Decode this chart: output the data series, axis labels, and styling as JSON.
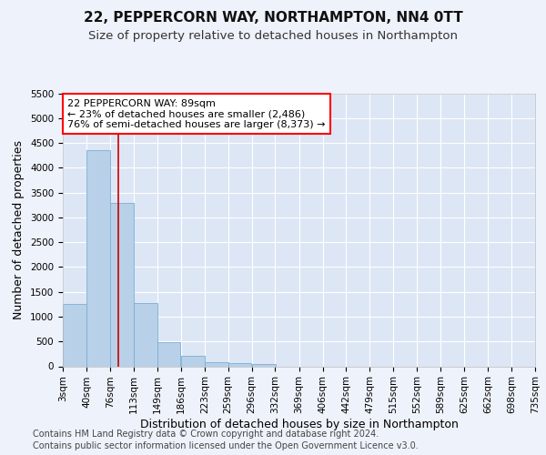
{
  "title1": "22, PEPPERCORN WAY, NORTHAMPTON, NN4 0TT",
  "title2": "Size of property relative to detached houses in Northampton",
  "xlabel": "Distribution of detached houses by size in Northampton",
  "ylabel": "Number of detached properties",
  "annotation_title": "22 PEPPERCORN WAY: 89sqm",
  "annotation_line1": "← 23% of detached houses are smaller (2,486)",
  "annotation_line2": "76% of semi-detached houses are larger (8,373) →",
  "footer1": "Contains HM Land Registry data © Crown copyright and database right 2024.",
  "footer2": "Contains public sector information licensed under the Open Government Licence v3.0.",
  "bar_color": "#b8d0e8",
  "bar_edge_color": "#7aafd4",
  "vline_color": "#cc0000",
  "vline_x": 89,
  "ylim": [
    0,
    5500
  ],
  "xlim": [
    3,
    735
  ],
  "categories": [
    "3sqm",
    "40sqm",
    "76sqm",
    "113sqm",
    "149sqm",
    "186sqm",
    "223sqm",
    "259sqm",
    "296sqm",
    "332sqm",
    "369sqm",
    "406sqm",
    "442sqm",
    "479sqm",
    "515sqm",
    "552sqm",
    "589sqm",
    "625sqm",
    "662sqm",
    "698sqm",
    "735sqm"
  ],
  "bin_edges": [
    3,
    40,
    76,
    113,
    149,
    186,
    223,
    259,
    296,
    332,
    369,
    406,
    442,
    479,
    515,
    552,
    589,
    625,
    662,
    698,
    735
  ],
  "bar_heights": [
    1260,
    4350,
    3300,
    1280,
    490,
    215,
    85,
    60,
    55,
    0,
    0,
    0,
    0,
    0,
    0,
    0,
    0,
    0,
    0,
    0
  ],
  "background_color": "#eef2fb",
  "plot_bg_color": "#dde6f5",
  "grid_color": "#ffffff",
  "title1_fontsize": 11,
  "title2_fontsize": 9.5,
  "axis_label_fontsize": 9,
  "tick_fontsize": 7.5,
  "footer_fontsize": 7,
  "yticks": [
    0,
    500,
    1000,
    1500,
    2000,
    2500,
    3000,
    3500,
    4000,
    4500,
    5000,
    5500
  ]
}
